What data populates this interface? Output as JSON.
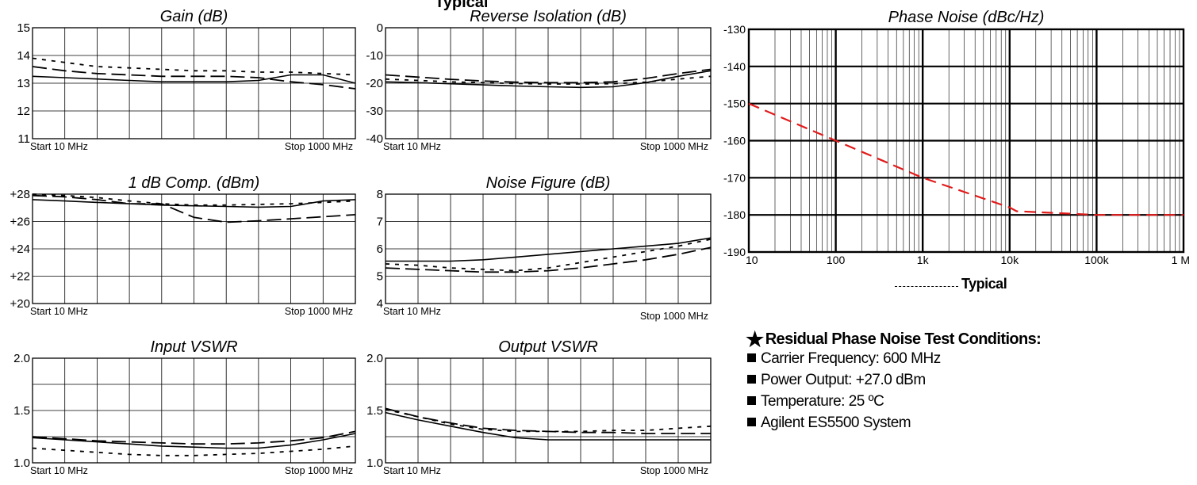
{
  "header_fragment": "Typical",
  "chart_data": [
    {
      "id": "gain",
      "type": "line",
      "title": "Gain (dB)",
      "x_start_label": "Start  10  MHz",
      "x_stop_label": "Stop  1000 MHz",
      "ylim": [
        11,
        15
      ],
      "y_ticks": [
        "11",
        "12",
        "13",
        "14",
        "15"
      ],
      "grid": true,
      "x": [
        0,
        0.1,
        0.2,
        0.3,
        0.4,
        0.5,
        0.6,
        0.7,
        0.8,
        0.9,
        1.0
      ],
      "series": [
        {
          "style": "solid",
          "values": [
            13.25,
            13.2,
            13.15,
            13.1,
            13.05,
            13.05,
            13.05,
            13.1,
            13.3,
            13.3,
            13.0
          ]
        },
        {
          "style": "long-dash",
          "values": [
            13.6,
            13.45,
            13.35,
            13.3,
            13.25,
            13.25,
            13.25,
            13.2,
            13.05,
            12.95,
            12.8
          ]
        },
        {
          "style": "dot",
          "values": [
            13.9,
            13.75,
            13.6,
            13.55,
            13.5,
            13.45,
            13.45,
            13.4,
            13.4,
            13.35,
            13.3
          ]
        }
      ]
    },
    {
      "id": "reverse-isolation",
      "type": "line",
      "title": "Reverse Isolation (dB)",
      "x_start_label": "Start  10  MHz",
      "x_stop_label": "Stop  1000 MHz",
      "ylim": [
        -40,
        0
      ],
      "y_ticks": [
        "-40",
        "-30",
        "-20",
        "-10",
        "0"
      ],
      "grid": true,
      "x": [
        0,
        0.1,
        0.2,
        0.3,
        0.4,
        0.5,
        0.6,
        0.7,
        0.8,
        0.9,
        1.0
      ],
      "series": [
        {
          "style": "solid",
          "values": [
            -19.5,
            -19.8,
            -20.2,
            -20.6,
            -21,
            -21.3,
            -21.5,
            -21.3,
            -19.8,
            -17.5,
            -15.5
          ]
        },
        {
          "style": "long-dash",
          "values": [
            -17,
            -17.8,
            -18.6,
            -19.2,
            -19.6,
            -19.8,
            -19.8,
            -19.5,
            -18.3,
            -16.5,
            -15
          ]
        },
        {
          "style": "dot",
          "values": [
            -18.5,
            -19,
            -19.5,
            -19.8,
            -20.1,
            -20.3,
            -20.3,
            -20.2,
            -19.6,
            -18.5,
            -17.5
          ]
        }
      ]
    },
    {
      "id": "comp",
      "type": "line",
      "title": "1 dB Comp. (dBm)",
      "x_start_label": "Start  10  MHz",
      "x_stop_label": "Stop  1000 MHz",
      "ylim": [
        20,
        28
      ],
      "y_ticks": [
        "+20",
        "+22",
        "+24",
        "+26",
        "+28"
      ],
      "grid": true,
      "x": [
        0,
        0.1,
        0.2,
        0.3,
        0.4,
        0.5,
        0.6,
        0.7,
        0.8,
        0.9,
        1.0
      ],
      "series": [
        {
          "style": "solid",
          "values": [
            27.6,
            27.5,
            27.4,
            27.3,
            27.2,
            27.15,
            27.1,
            27.05,
            27.1,
            27.5,
            27.6
          ]
        },
        {
          "style": "long-dash",
          "values": [
            27.9,
            27.8,
            27.6,
            27.3,
            27.3,
            26.3,
            25.95,
            26.05,
            26.2,
            26.35,
            26.5
          ]
        },
        {
          "style": "dot",
          "values": [
            28.0,
            27.9,
            27.75,
            27.5,
            27.3,
            27.2,
            27.2,
            27.25,
            27.3,
            27.4,
            27.5
          ]
        }
      ]
    },
    {
      "id": "noise-figure",
      "type": "line",
      "title": "Noise Figure (dB)",
      "x_start_label": "Start  10  MHz",
      "x_stop_label": "Stop  1000 MHz",
      "ylim": [
        4,
        8
      ],
      "y_ticks": [
        "4",
        "5",
        "6",
        "7",
        "8"
      ],
      "grid": true,
      "x": [
        0,
        0.1,
        0.2,
        0.3,
        0.4,
        0.5,
        0.6,
        0.7,
        0.8,
        0.9,
        1.0
      ],
      "series": [
        {
          "style": "solid",
          "values": [
            5.55,
            5.55,
            5.55,
            5.6,
            5.7,
            5.8,
            5.9,
            6.0,
            6.1,
            6.2,
            6.4
          ]
        },
        {
          "style": "long-dash",
          "values": [
            5.3,
            5.25,
            5.2,
            5.15,
            5.15,
            5.2,
            5.3,
            5.45,
            5.6,
            5.8,
            6.05
          ]
        },
        {
          "style": "dot",
          "values": [
            5.45,
            5.4,
            5.3,
            5.25,
            5.2,
            5.3,
            5.5,
            5.7,
            5.9,
            6.1,
            6.35
          ]
        }
      ]
    },
    {
      "id": "input-vswr",
      "type": "line",
      "title": "Input VSWR",
      "x_start_label": "Start  10  MHz",
      "x_stop_label": "Stop  1000 MHz",
      "ylim": [
        1.0,
        2.0
      ],
      "y_ticks": [
        "1.0",
        "1.5",
        "2.0"
      ],
      "y_tick_values": [
        1.0,
        1.5,
        2.0
      ],
      "y_grid_lines": 4,
      "grid": true,
      "x": [
        0,
        0.1,
        0.2,
        0.3,
        0.4,
        0.5,
        0.6,
        0.7,
        0.8,
        0.9,
        1.0
      ],
      "series": [
        {
          "style": "solid",
          "values": [
            1.24,
            1.22,
            1.2,
            1.18,
            1.16,
            1.15,
            1.14,
            1.14,
            1.17,
            1.22,
            1.28
          ]
        },
        {
          "style": "long-dash",
          "values": [
            1.25,
            1.23,
            1.21,
            1.2,
            1.19,
            1.18,
            1.18,
            1.19,
            1.21,
            1.24,
            1.3
          ]
        },
        {
          "style": "dot",
          "values": [
            1.14,
            1.12,
            1.1,
            1.08,
            1.07,
            1.07,
            1.08,
            1.09,
            1.11,
            1.13,
            1.16
          ]
        }
      ]
    },
    {
      "id": "output-vswr",
      "type": "line",
      "title": "Output VSWR",
      "x_start_label": "Start  10  MHz",
      "x_stop_label": "Stop  1000 MHz",
      "ylim": [
        1.0,
        2.0
      ],
      "y_ticks": [
        "1.0",
        "1.5",
        "2.0"
      ],
      "y_tick_values": [
        1.0,
        1.5,
        2.0
      ],
      "y_grid_lines": 4,
      "grid": true,
      "x": [
        0,
        0.1,
        0.2,
        0.3,
        0.4,
        0.5,
        0.6,
        0.7,
        0.8,
        0.9,
        1.0
      ],
      "series": [
        {
          "style": "solid",
          "values": [
            1.48,
            1.41,
            1.35,
            1.29,
            1.24,
            1.22,
            1.22,
            1.22,
            1.22,
            1.22,
            1.22
          ]
        },
        {
          "style": "long-dash",
          "values": [
            1.52,
            1.44,
            1.38,
            1.33,
            1.31,
            1.3,
            1.29,
            1.29,
            1.28,
            1.28,
            1.28
          ]
        },
        {
          "style": "dot",
          "values": [
            1.51,
            1.44,
            1.37,
            1.32,
            1.3,
            1.3,
            1.3,
            1.31,
            1.31,
            1.33,
            1.35
          ]
        }
      ]
    },
    {
      "id": "phase-noise",
      "type": "line",
      "title": "Phase Noise (dBc/Hz)",
      "xscale": "log",
      "xlim": [
        10,
        1000000
      ],
      "ylim": [
        -190,
        -130
      ],
      "x_ticks": [
        "10",
        "100",
        "1k",
        "10k",
        "100k",
        "1 M"
      ],
      "y_ticks": [
        "-190",
        "-180",
        "-170",
        "-160",
        "-150",
        "-140",
        "-130"
      ],
      "grid": true,
      "series": [
        {
          "style": "dash",
          "color": "#e11a1a",
          "x": [
            10,
            100,
            1000,
            10000,
            12000,
            100000,
            1000000
          ],
          "values": [
            -150,
            -160,
            -170,
            -178,
            -179,
            -180,
            -180
          ]
        }
      ],
      "legend_label": "Typical"
    }
  ],
  "conditions": {
    "title": "Residual Phase Noise Test Conditions:",
    "star": "★",
    "items": [
      "Carrier Frequency: 600 MHz",
      "Power Output: +27.0 dBm",
      "Temperature: 25 ºC",
      "Agilent ES5500 System"
    ]
  }
}
